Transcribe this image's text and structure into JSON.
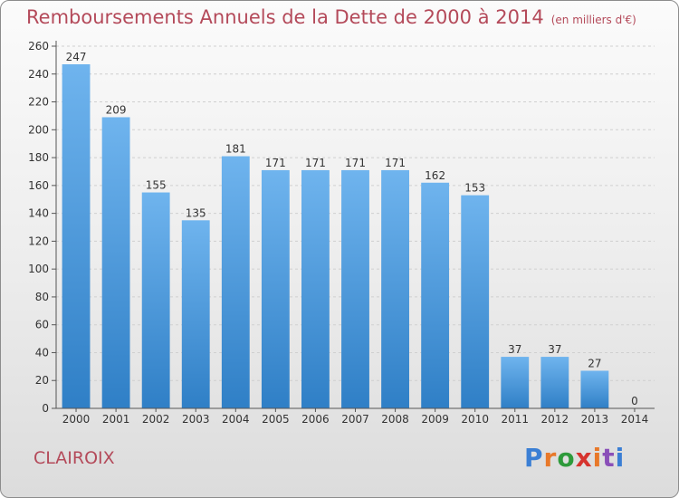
{
  "header": {
    "title": "Remboursements Annuels de la Dette de 2000 à 2014",
    "unit": "(en milliers d'€)"
  },
  "footer": {
    "commune": "CLAIROIX",
    "logo_text": "Proxiti",
    "logo_colors": [
      "#3b7fd4",
      "#e8792a",
      "#2e9a3b",
      "#d6332e",
      "#e8792a",
      "#8a4fb8",
      "#3b7fd4"
    ]
  },
  "colors": {
    "bar_top": "#6fb4ee",
    "bar_bottom": "#2f7fc6",
    "title": "#b44a5a",
    "grid": "#cfcfcf"
  },
  "chart_data": {
    "type": "bar",
    "title": "Remboursements Annuels de la Dette de 2000 à 2014",
    "xlabel": "",
    "ylabel": "",
    "categories": [
      "2000",
      "2001",
      "2002",
      "2003",
      "2004",
      "2005",
      "2006",
      "2007",
      "2008",
      "2009",
      "2010",
      "2011",
      "2012",
      "2013",
      "2014"
    ],
    "values": [
      247,
      209,
      155,
      135,
      181,
      171,
      171,
      171,
      171,
      162,
      153,
      37,
      37,
      27,
      0
    ],
    "ylim": [
      0,
      260
    ],
    "yticks": [
      0,
      20,
      40,
      60,
      80,
      100,
      120,
      140,
      160,
      180,
      200,
      220,
      240,
      260
    ],
    "grid": true,
    "legend": "none"
  }
}
